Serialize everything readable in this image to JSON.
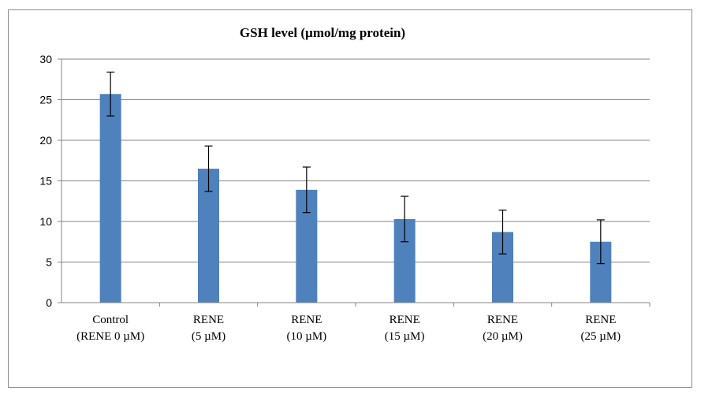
{
  "chart_data": {
    "type": "bar",
    "title": "GSH level (µmol/mg  protein)",
    "xlabel": "",
    "ylabel": "",
    "ylim": [
      0,
      30
    ],
    "yticks": [
      0,
      5,
      10,
      15,
      20,
      25,
      30
    ],
    "grid": true,
    "legend": "none",
    "categories": [
      [
        "Control",
        "(RENE  0 µM)"
      ],
      [
        "RENE",
        "(5 µM)"
      ],
      [
        "RENE",
        "(10 µM)"
      ],
      [
        "RENE",
        "(15 µM)"
      ],
      [
        "RENE",
        "(20 µM)"
      ],
      [
        "RENE",
        "(25 µM)"
      ]
    ],
    "values": [
      25.7,
      16.5,
      13.9,
      10.3,
      8.7,
      7.5
    ],
    "errors": [
      2.7,
      2.8,
      2.8,
      2.8,
      2.7,
      2.7
    ],
    "bar_color": "#4f81bd",
    "grid_color": "#868686"
  }
}
